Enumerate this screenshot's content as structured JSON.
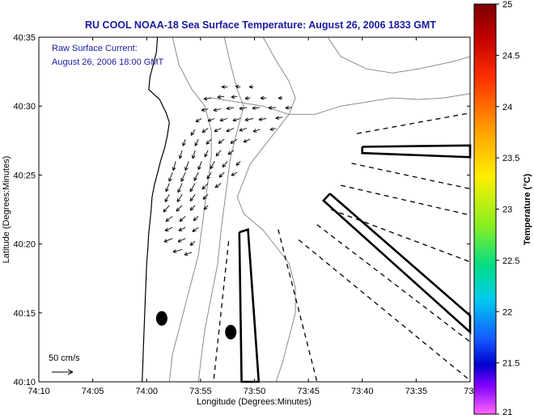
{
  "chart_data": {
    "type": "map",
    "title": "RU COOL  NOAA-18  Sea Surface Temperature:  August 26, 2006 1833 GMT",
    "annotation_lines": [
      "Raw Surface Current:",
      "August 26, 2006 18:00 GMT"
    ],
    "xlabel": "Longitude (Degrees:Minutes)",
    "ylabel": "Latitude (Degrees:Minutes)",
    "x_ticks": [
      "74:10",
      "74:05",
      "74:00",
      "73:55",
      "73:50",
      "73:45",
      "73:40",
      "73:35",
      "73:3"
    ],
    "y_ticks": [
      "40:35",
      "40:30",
      "40:25",
      "40:20",
      "40:15",
      "40:10"
    ],
    "xlim": [
      -74.1667,
      -73.5
    ],
    "ylim": [
      40.1667,
      40.5833
    ],
    "scale_label": "50 cm/s",
    "colorbar": {
      "label": "Temperature (°C)",
      "ticks": [
        "25",
        "24.5",
        "24",
        "23.5",
        "23",
        "22.5",
        "22",
        "21.5",
        "21"
      ],
      "range": [
        21,
        25
      ]
    },
    "markers": [
      {
        "lon": -73.9767,
        "lat": 40.2433
      },
      {
        "lon": -73.87,
        "lat": 40.2267
      }
    ],
    "current_vectors": [
      {
        "lon": -73.875,
        "lat": 40.5233,
        "u": 14,
        "v": 0
      },
      {
        "lon": -73.855,
        "lat": 40.5233,
        "u": 12,
        "v": -1
      },
      {
        "lon": -73.835,
        "lat": 40.5233,
        "u": 10,
        "v": 0
      },
      {
        "lon": -73.9,
        "lat": 40.51,
        "u": 18,
        "v": 3
      },
      {
        "lon": -73.88,
        "lat": 40.5117,
        "u": 16,
        "v": 2
      },
      {
        "lon": -73.86,
        "lat": 40.5117,
        "u": 14,
        "v": 2
      },
      {
        "lon": -73.84,
        "lat": 40.51,
        "u": 12,
        "v": 2
      },
      {
        "lon": -73.815,
        "lat": 40.51,
        "u": 14,
        "v": 1
      },
      {
        "lon": -73.79,
        "lat": 40.51,
        "u": 10,
        "v": 1
      },
      {
        "lon": -73.905,
        "lat": 40.4967,
        "u": 16,
        "v": 4
      },
      {
        "lon": -73.885,
        "lat": 40.4967,
        "u": 18,
        "v": 4
      },
      {
        "lon": -73.865,
        "lat": 40.4983,
        "u": 18,
        "v": 3
      },
      {
        "lon": -73.845,
        "lat": 40.4983,
        "u": 18,
        "v": 3
      },
      {
        "lon": -73.825,
        "lat": 40.4983,
        "u": 18,
        "v": 2
      },
      {
        "lon": -73.8,
        "lat": 40.4983,
        "u": 18,
        "v": 1
      },
      {
        "lon": -73.775,
        "lat": 40.4983,
        "u": 16,
        "v": 1
      },
      {
        "lon": -73.915,
        "lat": 40.485,
        "u": 14,
        "v": 8
      },
      {
        "lon": -73.895,
        "lat": 40.485,
        "u": 16,
        "v": 6
      },
      {
        "lon": -73.875,
        "lat": 40.485,
        "u": 18,
        "v": 5
      },
      {
        "lon": -73.855,
        "lat": 40.485,
        "u": 18,
        "v": 5
      },
      {
        "lon": -73.835,
        "lat": 40.485,
        "u": 20,
        "v": 4
      },
      {
        "lon": -73.815,
        "lat": 40.485,
        "u": 18,
        "v": 3
      },
      {
        "lon": -73.79,
        "lat": 40.4867,
        "u": 16,
        "v": 3
      },
      {
        "lon": -73.925,
        "lat": 40.4717,
        "u": 10,
        "v": 14
      },
      {
        "lon": -73.905,
        "lat": 40.4733,
        "u": 14,
        "v": 10
      },
      {
        "lon": -73.885,
        "lat": 40.4733,
        "u": 16,
        "v": 8
      },
      {
        "lon": -73.865,
        "lat": 40.4733,
        "u": 18,
        "v": 8
      },
      {
        "lon": -73.845,
        "lat": 40.4733,
        "u": 18,
        "v": 6
      },
      {
        "lon": -73.825,
        "lat": 40.4717,
        "u": 16,
        "v": 5
      },
      {
        "lon": -73.8,
        "lat": 40.4733,
        "u": 14,
        "v": 4
      },
      {
        "lon": -73.94,
        "lat": 40.46,
        "u": 6,
        "v": 16
      },
      {
        "lon": -73.92,
        "lat": 40.46,
        "u": 8,
        "v": 16
      },
      {
        "lon": -73.9,
        "lat": 40.46,
        "u": 12,
        "v": 12
      },
      {
        "lon": -73.88,
        "lat": 40.46,
        "u": 14,
        "v": 10
      },
      {
        "lon": -73.86,
        "lat": 40.46,
        "u": 16,
        "v": 10
      },
      {
        "lon": -73.84,
        "lat": 40.46,
        "u": 16,
        "v": 7
      },
      {
        "lon": -73.945,
        "lat": 40.4467,
        "u": 6,
        "v": 20
      },
      {
        "lon": -73.925,
        "lat": 40.4467,
        "u": 6,
        "v": 20
      },
      {
        "lon": -73.905,
        "lat": 40.4467,
        "u": 8,
        "v": 16
      },
      {
        "lon": -73.885,
        "lat": 40.4467,
        "u": 12,
        "v": 14
      },
      {
        "lon": -73.865,
        "lat": 40.4467,
        "u": 14,
        "v": 10
      },
      {
        "lon": -73.955,
        "lat": 40.4333,
        "u": 6,
        "v": 22
      },
      {
        "lon": -73.935,
        "lat": 40.4333,
        "u": 8,
        "v": 22
      },
      {
        "lon": -73.915,
        "lat": 40.4333,
        "u": 8,
        "v": 20
      },
      {
        "lon": -73.895,
        "lat": 40.4333,
        "u": 10,
        "v": 18
      },
      {
        "lon": -73.875,
        "lat": 40.4333,
        "u": 12,
        "v": 14
      },
      {
        "lon": -73.855,
        "lat": 40.4333,
        "u": 10,
        "v": 10
      },
      {
        "lon": -73.96,
        "lat": 40.42,
        "u": 8,
        "v": 22
      },
      {
        "lon": -73.94,
        "lat": 40.42,
        "u": 10,
        "v": 22
      },
      {
        "lon": -73.92,
        "lat": 40.42,
        "u": 10,
        "v": 20
      },
      {
        "lon": -73.9,
        "lat": 40.42,
        "u": 10,
        "v": 16
      },
      {
        "lon": -73.88,
        "lat": 40.42,
        "u": 12,
        "v": 12
      },
      {
        "lon": -73.86,
        "lat": 40.42,
        "u": 14,
        "v": 8
      },
      {
        "lon": -73.965,
        "lat": 40.4067,
        "u": 8,
        "v": 20
      },
      {
        "lon": -73.945,
        "lat": 40.4067,
        "u": 10,
        "v": 22
      },
      {
        "lon": -73.925,
        "lat": 40.4067,
        "u": 12,
        "v": 20
      },
      {
        "lon": -73.905,
        "lat": 40.4067,
        "u": 14,
        "v": 14
      },
      {
        "lon": -73.885,
        "lat": 40.4067,
        "u": 14,
        "v": 10
      },
      {
        "lon": -73.965,
        "lat": 40.3933,
        "u": 10,
        "v": 18
      },
      {
        "lon": -73.945,
        "lat": 40.3933,
        "u": 12,
        "v": 18
      },
      {
        "lon": -73.925,
        "lat": 40.3933,
        "u": 12,
        "v": 16
      },
      {
        "lon": -73.905,
        "lat": 40.3933,
        "u": 12,
        "v": 12
      },
      {
        "lon": -73.965,
        "lat": 40.38,
        "u": 14,
        "v": 16
      },
      {
        "lon": -73.945,
        "lat": 40.38,
        "u": 14,
        "v": 14
      },
      {
        "lon": -73.925,
        "lat": 40.38,
        "u": 12,
        "v": 12
      },
      {
        "lon": -73.905,
        "lat": 40.38,
        "u": 10,
        "v": 10
      },
      {
        "lon": -73.96,
        "lat": 40.3667,
        "u": 16,
        "v": 12
      },
      {
        "lon": -73.94,
        "lat": 40.3667,
        "u": 14,
        "v": 12
      },
      {
        "lon": -73.92,
        "lat": 40.3667,
        "u": 12,
        "v": 10
      },
      {
        "lon": -73.96,
        "lat": 40.3533,
        "u": 18,
        "v": 8
      },
      {
        "lon": -73.94,
        "lat": 40.3533,
        "u": 16,
        "v": 8
      },
      {
        "lon": -73.92,
        "lat": 40.3533,
        "u": 14,
        "v": 10
      },
      {
        "lon": -73.96,
        "lat": 40.34,
        "u": 20,
        "v": 8
      },
      {
        "lon": -73.94,
        "lat": 40.34,
        "u": 18,
        "v": 8
      },
      {
        "lon": -73.925,
        "lat": 40.3367,
        "u": 12,
        "v": 10
      },
      {
        "lon": -73.945,
        "lat": 40.3267,
        "u": 22,
        "v": 6
      },
      {
        "lon": -73.93,
        "lat": 40.3233,
        "u": 18,
        "v": 6
      }
    ],
    "transects_solid": [
      [
        [
          -73.6667,
          40.4508
        ],
        [
          -73.5,
          40.4525
        ],
        [
          -73.5,
          40.4383
        ],
        [
          -73.6667,
          40.4433
        ],
        [
          -73.6667,
          40.4508
        ]
      ],
      [
        [
          -73.7167,
          40.3942
        ],
        [
          -73.5,
          40.2467
        ],
        [
          -73.5,
          40.2267
        ],
        [
          -73.7267,
          40.3858
        ],
        [
          -73.7167,
          40.3942
        ]
      ],
      [
        [
          -73.8567,
          40.3475
        ],
        [
          -73.8433,
          40.3508
        ],
        [
          -73.8267,
          40.1667
        ],
        [
          -73.8533,
          40.1667
        ],
        [
          -73.8567,
          40.3475
        ]
      ]
    ],
    "transects_dashed": [
      [
        [
          -73.675,
          40.4667
        ],
        [
          -73.5,
          40.4917
        ]
      ],
      [
        [
          -73.6833,
          40.4308
        ],
        [
          -73.5,
          40.4
        ]
      ],
      [
        [
          -73.7,
          40.4042
        ],
        [
          -73.5,
          40.3683
        ]
      ],
      [
        [
          -73.715,
          40.375
        ],
        [
          -73.5,
          40.3117
        ]
      ],
      [
        [
          -73.7367,
          40.3567
        ],
        [
          -73.5,
          40.215
        ]
      ],
      [
        [
          -73.765,
          40.3383
        ],
        [
          -73.5,
          40.1683
        ]
      ],
      [
        [
          -73.7967,
          40.3508
        ],
        [
          -73.7367,
          40.1667
        ]
      ],
      [
        [
          -73.8733,
          40.3367
        ],
        [
          -73.8967,
          40.1667
        ]
      ]
    ],
    "coastline": [
      [
        -73.9833,
        40.5833
      ],
      [
        -73.985,
        40.565
      ],
      [
        -73.99,
        40.55
      ],
      [
        -73.995,
        40.535
      ],
      [
        -73.9967,
        40.52
      ],
      [
        -73.98,
        40.508
      ],
      [
        -73.97,
        40.492
      ],
      [
        -73.965,
        40.48
      ],
      [
        -73.968,
        40.465
      ],
      [
        -73.972,
        40.45
      ],
      [
        -73.978,
        40.435
      ],
      [
        -73.983,
        40.42
      ],
      [
        -73.988,
        40.405
      ],
      [
        -73.9917,
        40.39
      ],
      [
        -73.993,
        40.375
      ],
      [
        -73.995,
        40.36
      ],
      [
        -73.997,
        40.345
      ],
      [
        -73.998,
        40.33
      ],
      [
        -74.0,
        40.31
      ],
      [
        -74.001,
        40.29
      ],
      [
        -74.002,
        40.27
      ],
      [
        -74.003,
        40.25
      ],
      [
        -74.004,
        40.23
      ],
      [
        -74.005,
        40.21
      ],
      [
        -74.006,
        40.1867
      ],
      [
        -74.007,
        40.1667
      ]
    ],
    "isobaths": [
      [
        [
          -73.96,
          40.5833
        ],
        [
          -73.95,
          40.55
        ],
        [
          -73.93,
          40.52
        ],
        [
          -73.91,
          40.5
        ],
        [
          -73.9,
          40.47
        ],
        [
          -73.9,
          40.44
        ],
        [
          -73.905,
          40.41
        ],
        [
          -73.91,
          40.38
        ],
        [
          -73.915,
          40.35
        ],
        [
          -73.92,
          40.32
        ],
        [
          -73.93,
          40.29
        ],
        [
          -73.94,
          40.26
        ],
        [
          -73.95,
          40.23
        ],
        [
          -73.96,
          40.2
        ],
        [
          -73.965,
          40.1667
        ]
      ],
      [
        [
          -73.88,
          40.5833
        ],
        [
          -73.87,
          40.55
        ],
        [
          -73.86,
          40.52
        ],
        [
          -73.85,
          40.5
        ],
        [
          -73.86,
          40.47
        ],
        [
          -73.87,
          40.44
        ],
        [
          -73.875,
          40.41
        ],
        [
          -73.88,
          40.38
        ],
        [
          -73.885,
          40.35
        ],
        [
          -73.89,
          40.31
        ],
        [
          -73.9,
          40.27
        ],
        [
          -73.91,
          40.23
        ],
        [
          -73.915,
          40.2
        ],
        [
          -73.92,
          40.1667
        ]
      ],
      [
        [
          -73.82,
          40.5833
        ],
        [
          -73.8,
          40.555
        ],
        [
          -73.78,
          40.53
        ],
        [
          -73.77,
          40.51
        ],
        [
          -73.78,
          40.49
        ],
        [
          -73.8,
          40.47
        ],
        [
          -73.82,
          40.45
        ],
        [
          -73.84,
          40.43
        ],
        [
          -73.85,
          40.41
        ],
        [
          -73.86,
          40.39
        ],
        [
          -73.85,
          40.37
        ],
        [
          -73.82,
          40.35
        ],
        [
          -73.8,
          40.33
        ],
        [
          -73.78,
          40.31
        ],
        [
          -73.77,
          40.28
        ],
        [
          -73.77,
          40.25
        ],
        [
          -73.78,
          40.22
        ],
        [
          -73.79,
          40.19
        ],
        [
          -73.8,
          40.1667
        ]
      ],
      [
        [
          -73.9,
          40.51
        ],
        [
          -73.86,
          40.505
        ],
        [
          -73.82,
          40.5
        ],
        [
          -73.78,
          40.49
        ],
        [
          -73.74,
          40.49
        ],
        [
          -73.7,
          40.5
        ],
        [
          -73.66,
          40.505
        ],
        [
          -73.62,
          40.51
        ],
        [
          -73.58,
          40.508
        ],
        [
          -73.54,
          40.51
        ],
        [
          -73.5,
          40.515
        ]
      ],
      [
        [
          -73.72,
          40.5833
        ],
        [
          -73.7,
          40.56
        ],
        [
          -73.66,
          40.545
        ],
        [
          -73.62,
          40.54
        ],
        [
          -73.58,
          40.545
        ],
        [
          -73.55,
          40.55
        ],
        [
          -73.52,
          40.555
        ],
        [
          -73.5,
          40.56
        ]
      ]
    ]
  }
}
